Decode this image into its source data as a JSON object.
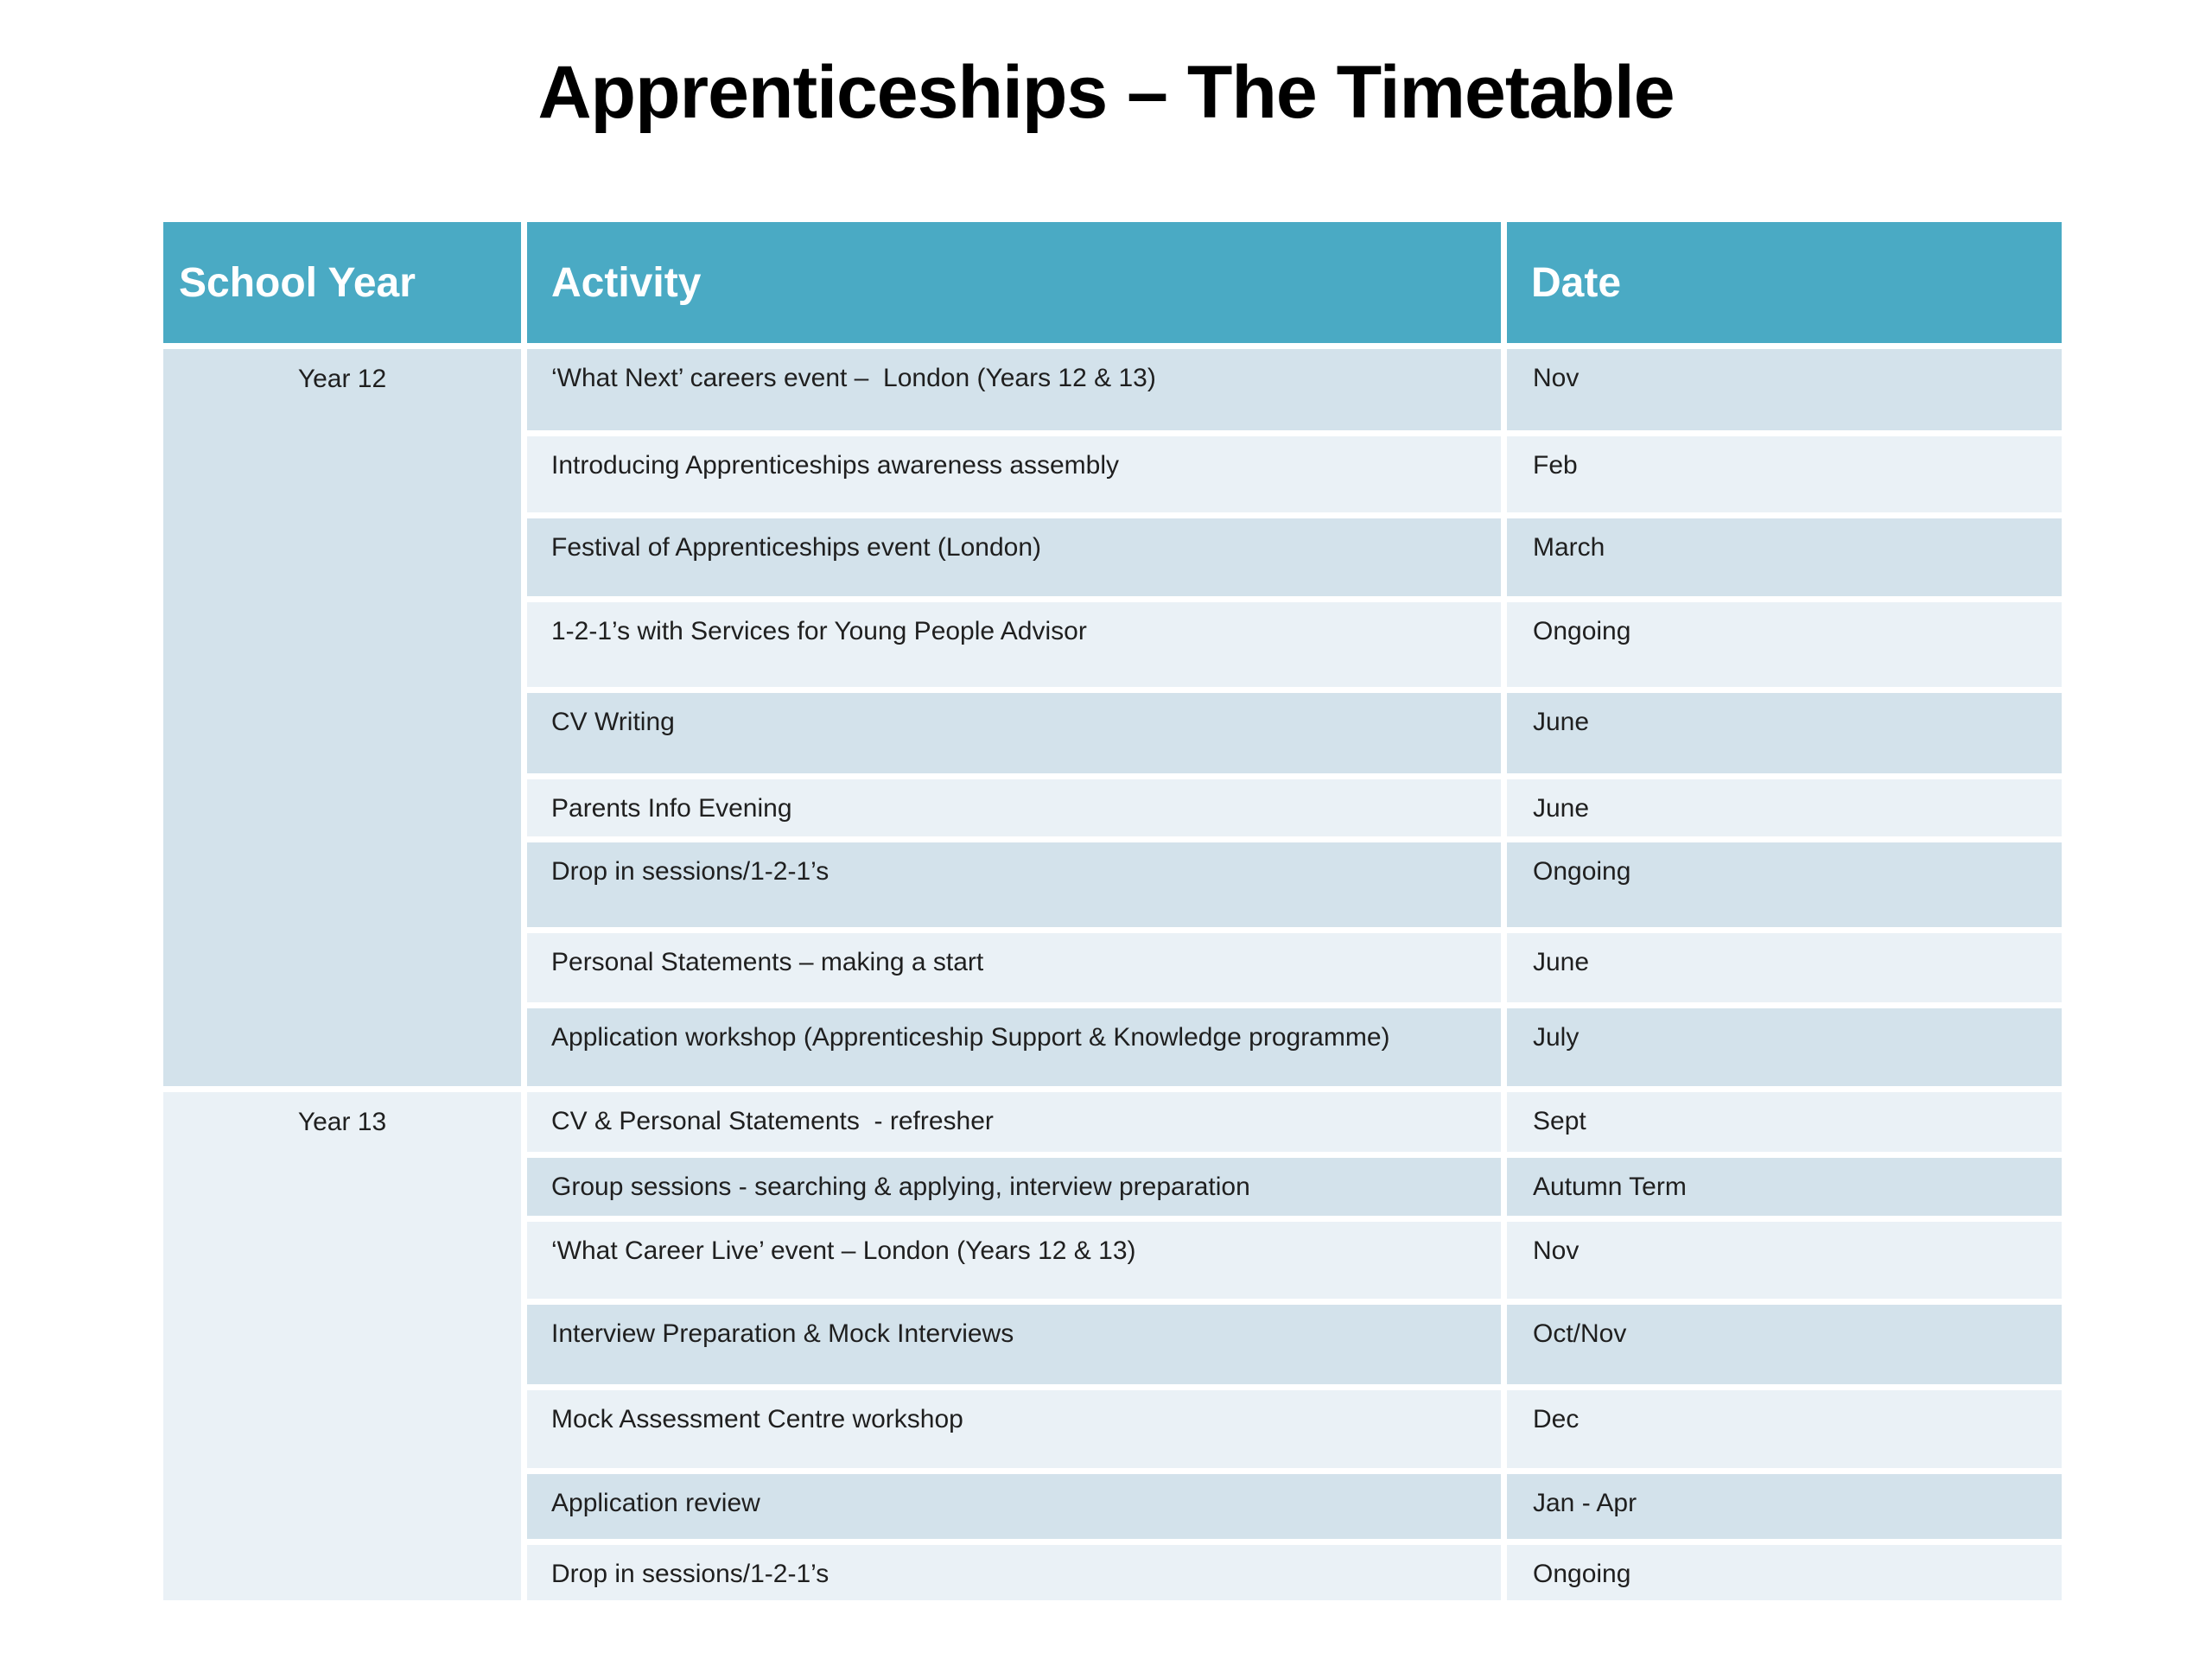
{
  "title": "Apprenticeships – The Timetable",
  "table": {
    "headers": [
      "School Year",
      "Activity",
      "Date"
    ],
    "groups": [
      {
        "year": "Year 12",
        "rows": [
          {
            "activity": "‘What Next’ careers event –  London (Years 12 & 13)",
            "date": "Nov"
          },
          {
            "activity": "Introducing Apprenticeships awareness assembly",
            "date": "Feb"
          },
          {
            "activity": "Festival of Apprenticeships event (London)",
            "date": "March"
          },
          {
            "activity": "1-2-1’s with Services for Young People Advisor",
            "date": "Ongoing"
          },
          {
            "activity": "CV Writing",
            "date": "June"
          },
          {
            "activity": "Parents Info Evening",
            "date": "June"
          },
          {
            "activity": "Drop in sessions/1-2-1’s",
            "date": "Ongoing"
          },
          {
            "activity": "Personal Statements – making a start",
            "date": "June"
          },
          {
            "activity": "Application workshop (Apprenticeship Support & Knowledge programme)",
            "date": "July"
          }
        ]
      },
      {
        "year": "Year 13",
        "rows": [
          {
            "activity": "CV & Personal Statements  - refresher",
            "date": "Sept"
          },
          {
            "activity": "Group sessions - searching & applying, interview preparation",
            "date": "Autumn Term"
          },
          {
            "activity": "‘What Career Live’ event – London (Years 12 & 13)",
            "date": "Nov"
          },
          {
            "activity": "Interview Preparation & Mock Interviews",
            "date": "Oct/Nov"
          },
          {
            "activity": "Mock Assessment Centre workshop",
            "date": "Dec"
          },
          {
            "activity": "Application review",
            "date": "Jan - Apr"
          },
          {
            "activity": "Drop in sessions/1-2-1’s",
            "date": "Ongoing"
          }
        ]
      }
    ]
  },
  "colors": {
    "header-bg": "#4AAAC4",
    "row-dark": "#D3E2EB",
    "row-light": "#EAF1F6",
    "header-text": "#FFFFFF",
    "body-text": "#1F1F1F",
    "title-text": "#000000",
    "grid-line": "#FFFFFF"
  }
}
